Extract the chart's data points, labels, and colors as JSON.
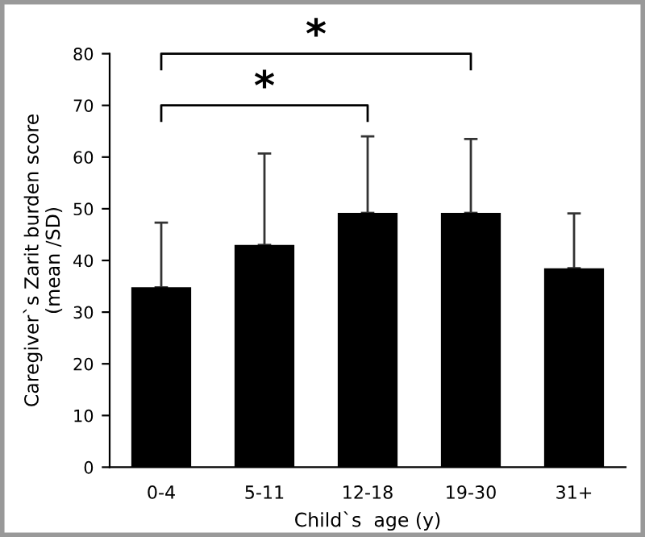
{
  "chart_data": {
    "type": "bar",
    "xlabel": "Child`s  age (y)",
    "ylabel": "Caregiver`s Zarit burden score\n(mean /SD)",
    "categories": [
      "0-4",
      "5-11",
      "12-18",
      "19-30",
      "31+"
    ],
    "values": [
      34.8,
      43.0,
      49.2,
      49.2,
      38.5
    ],
    "errors": [
      [
        34.8,
        47.3
      ],
      [
        43.0,
        60.7
      ],
      [
        49.2,
        64.0
      ],
      [
        49.2,
        63.5
      ],
      [
        38.5,
        49.1
      ]
    ],
    "color": "#000000",
    "ylim": [
      0,
      80
    ],
    "yticks": [
      0,
      10,
      20,
      30,
      40,
      50,
      60,
      70,
      80
    ],
    "grid": false,
    "annotations": [
      "*",
      "*"
    ]
  }
}
